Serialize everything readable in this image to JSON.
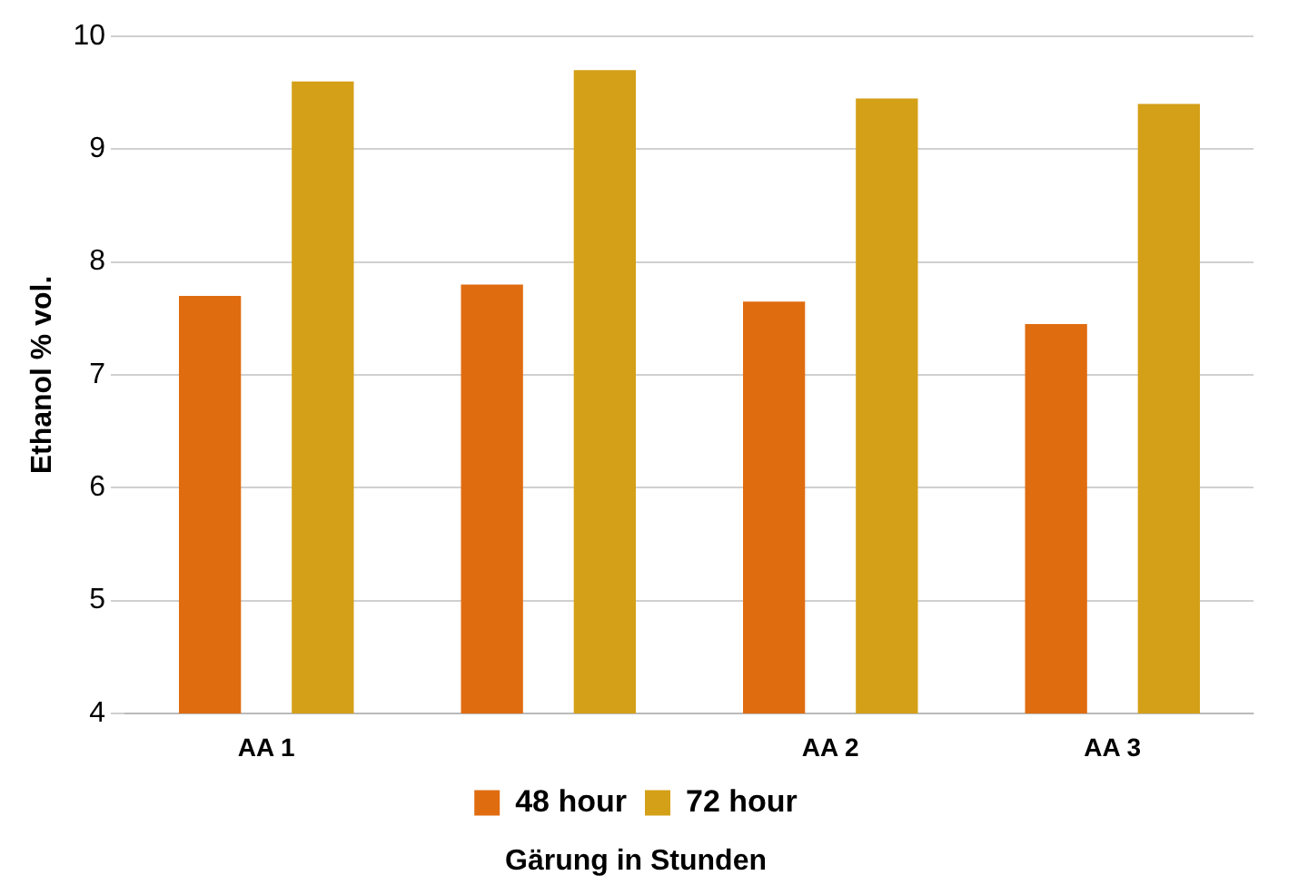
{
  "chart_data": {
    "type": "bar",
    "xlabel": "Gärung in Stunden",
    "ylabel": "Ethanol % vol.",
    "categories": [
      "AA 1",
      null,
      "AA 2",
      "AA 3"
    ],
    "series": [
      {
        "name": "48 hour",
        "color": "#e06c10",
        "values": [
          7.7,
          7.8,
          7.65,
          7.45
        ]
      },
      {
        "name": "72 hour",
        "color": "#d4a017",
        "values": [
          9.6,
          9.7,
          9.45,
          9.4
        ]
      }
    ],
    "ylim": [
      4,
      10
    ],
    "yticks": [
      4,
      5,
      6,
      7,
      8,
      9,
      10
    ],
    "grid": "y",
    "legend": "bottom"
  }
}
